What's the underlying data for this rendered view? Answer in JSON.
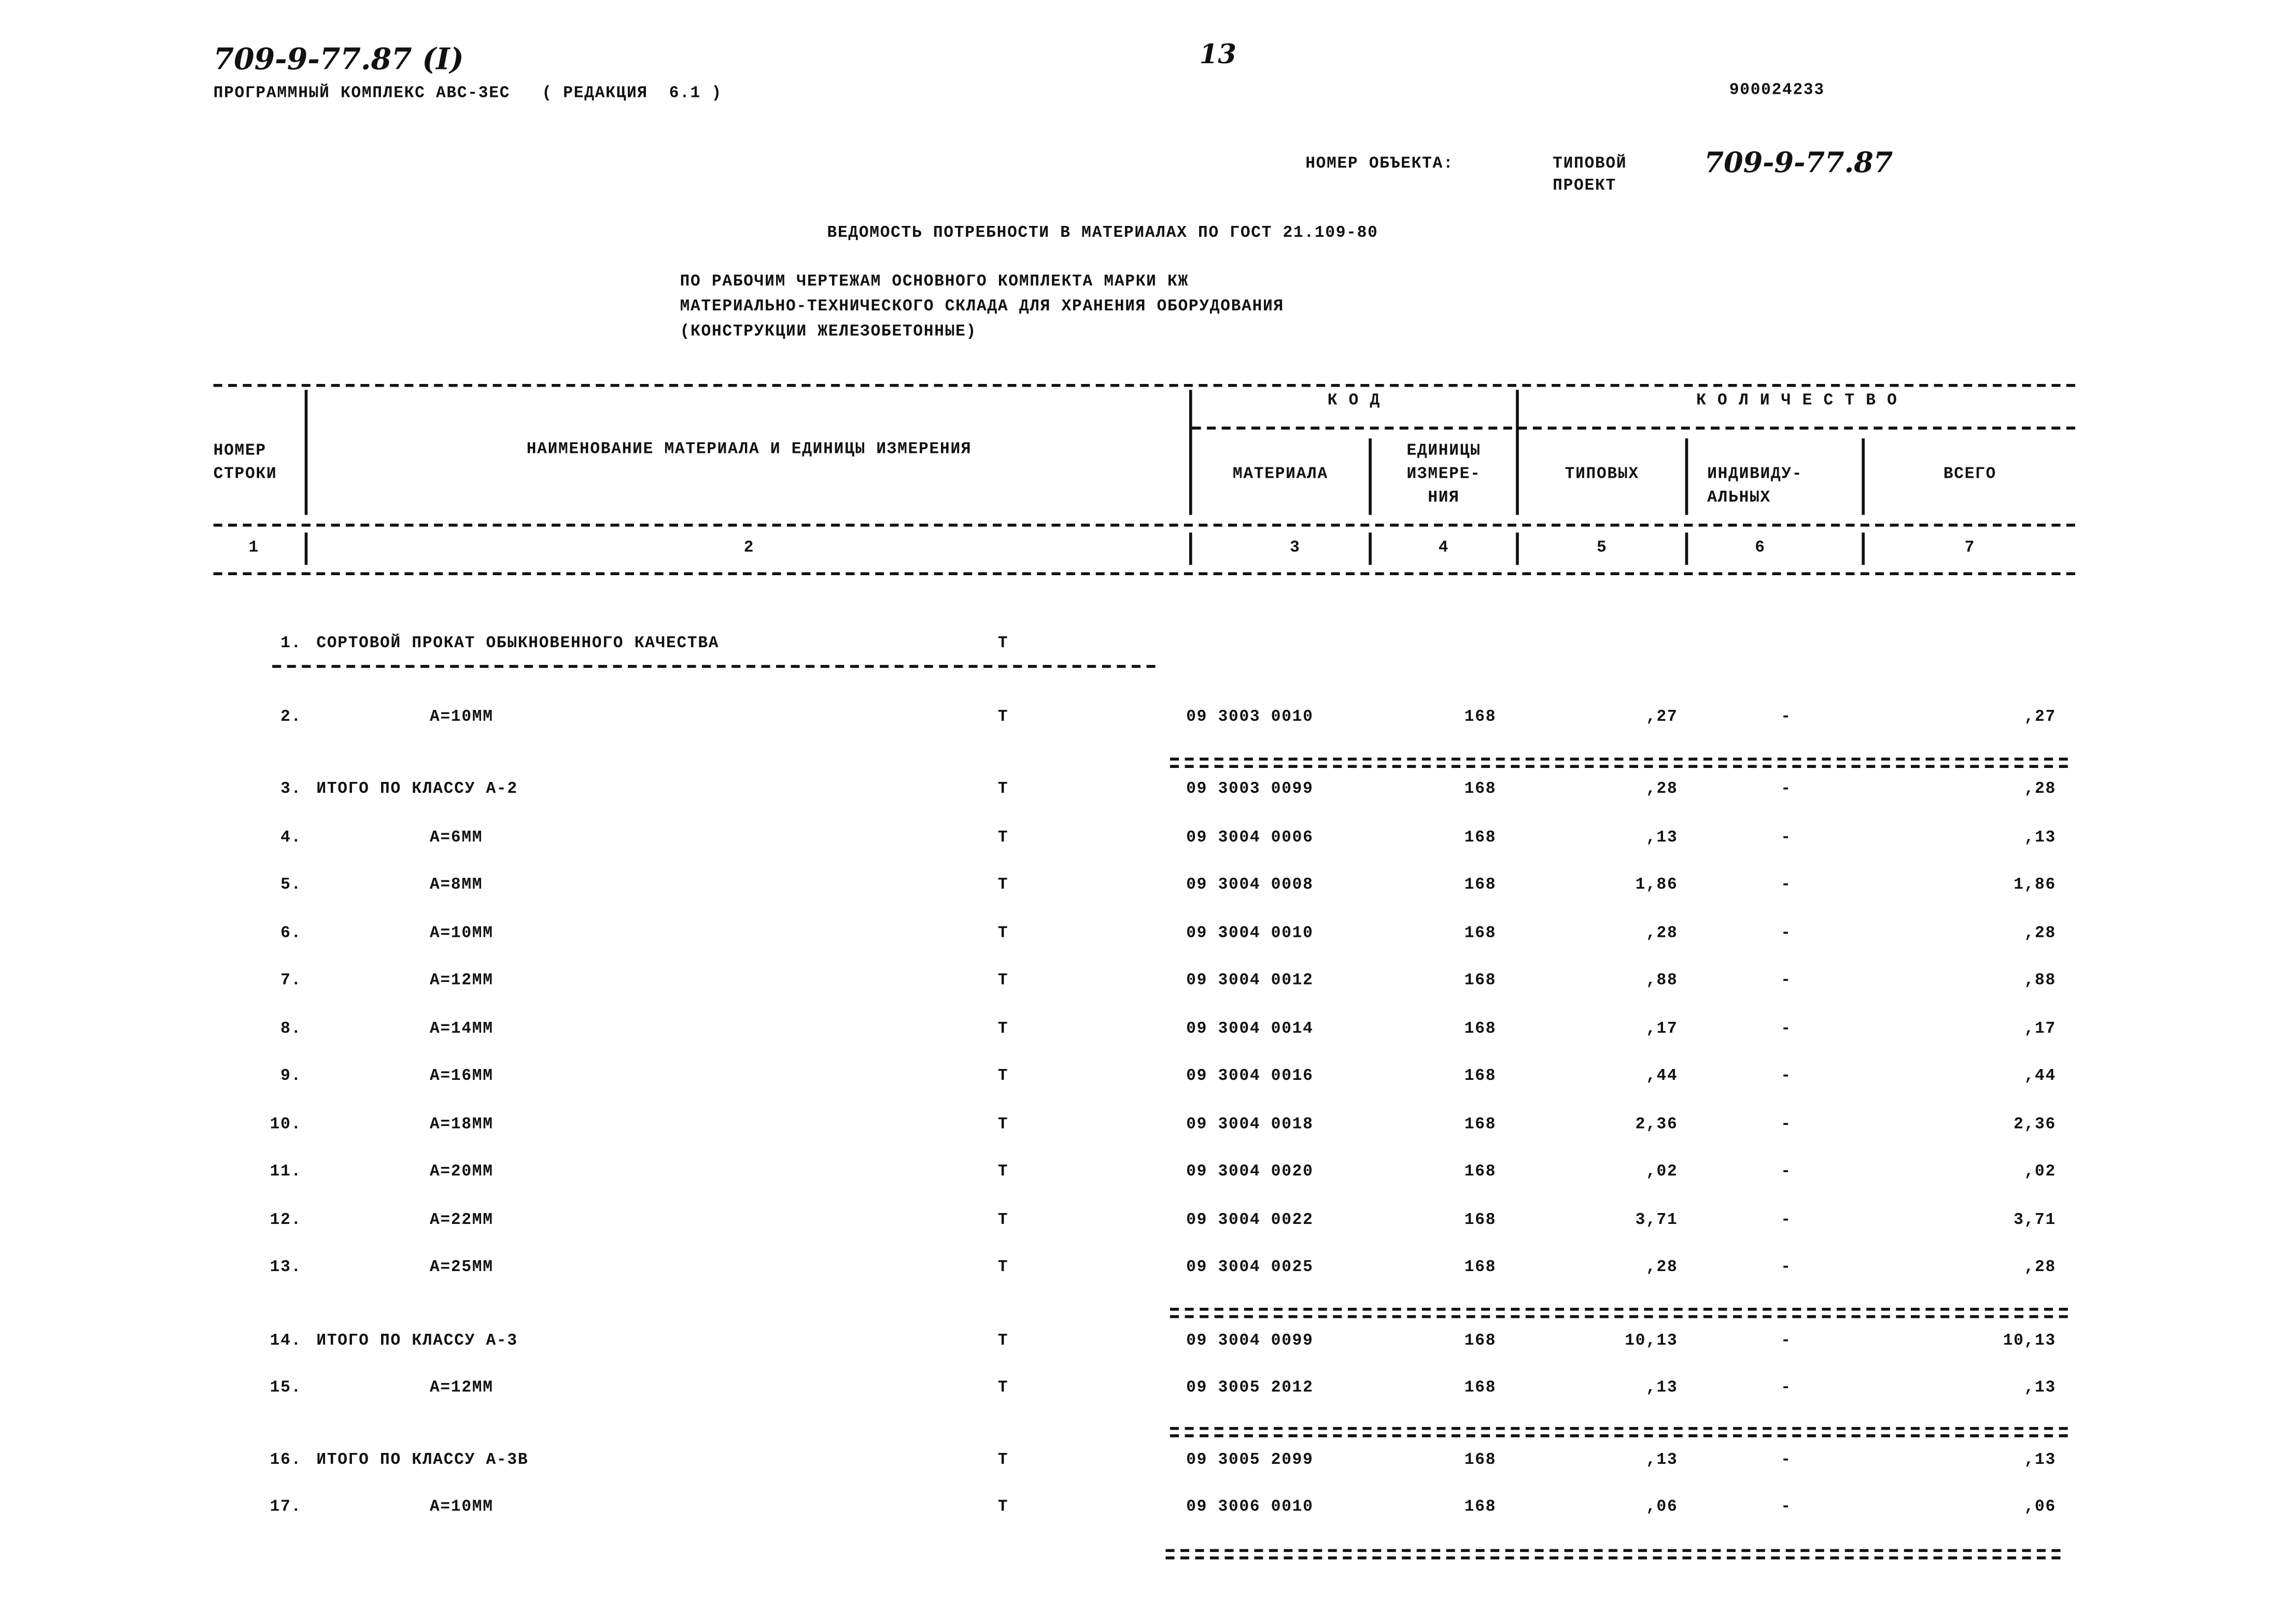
{
  "header": {
    "doc_code": "709-9-77.87 (I)",
    "page_number": "13",
    "program": "ПРОГРАММНЫЙ КОМПЛЕКС АВС-3ЕС   ( РЕДАКЦИЯ  6.1 )",
    "doc_id": "900024233",
    "object_label": "НОМЕР ОБЪЕКТА:",
    "object_type_line1": "ТИПОВОЙ",
    "object_type_line2": "ПРОЕКТ",
    "object_number": "709-9-77.87"
  },
  "title": "ВЕДОМОСТЬ ПОТРЕБНОСТИ В МАТЕРИАЛАХ ПО ГОСТ 21.109-80",
  "subtitle": [
    "ПО РАБОЧИМ ЧЕРТЕЖАМ ОСНОВНОГО КОМПЛЕКТА МАРКИ КЖ",
    "МАТЕРИАЛЬНО-ТЕХНИЧЕСКОГО СКЛАДА ДЛЯ ХРАНЕНИЯ ОБОРУДОВАНИЯ",
    "(КОНСТРУКЦИИ ЖЕЛЕЗОБЕТОННЫЕ)"
  ],
  "table": {
    "headers": {
      "row_number_1": "НОМЕР",
      "row_number_2": "СТРОКИ",
      "name": "НАИМЕНОВАНИЕ МАТЕРИАЛА И ЕДИНИЦЫ ИЗМЕРЕНИЯ",
      "code_group": "К О Д",
      "quantity_group": "К О Л И Ч Е С Т В О",
      "material": "МАТЕРИАЛА",
      "unit_1": "ЕДИНИЦЫ",
      "unit_2": "ИЗМЕРЕ-",
      "unit_3": "НИЯ",
      "typical": "ТИПОВЫХ",
      "individual_1": "ИНДИВИДУ-",
      "individual_2": "АЛЬНЫХ",
      "total": "ВСЕГО"
    },
    "column_numbers": [
      "1",
      "2",
      "3",
      "4",
      "5",
      "6",
      "7"
    ],
    "rows": [
      {
        "num": "1.",
        "name": "СОРТОВОЙ ПРОКАТ ОБЫКНОВЕННОГО КАЧЕСТВА",
        "unit": "Т",
        "code": "",
        "unit_code": "",
        "typical": "",
        "individual": "",
        "total": "",
        "kind": "section"
      },
      {
        "num": "2.",
        "name": "А=10ММ",
        "unit": "Т",
        "code": "09 3003 0010",
        "unit_code": "168",
        "typical": ",27",
        "individual": "-",
        "total": ",27",
        "kind": "item"
      },
      {
        "num": "3.",
        "name": "ИТОГО ПО КЛАССУ А-2",
        "unit": "Т",
        "code": "09 3003 0099",
        "unit_code": "168",
        "typical": ",28",
        "individual": "-",
        "total": ",28",
        "kind": "subtotal"
      },
      {
        "num": "4.",
        "name": "А=6ММ",
        "unit": "Т",
        "code": "09 3004 0006",
        "unit_code": "168",
        "typical": ",13",
        "individual": "-",
        "total": ",13",
        "kind": "item"
      },
      {
        "num": "5.",
        "name": "А=8ММ",
        "unit": "Т",
        "code": "09 3004 0008",
        "unit_code": "168",
        "typical": "1,86",
        "individual": "-",
        "total": "1,86",
        "kind": "item"
      },
      {
        "num": "6.",
        "name": "А=10ММ",
        "unit": "Т",
        "code": "09 3004 0010",
        "unit_code": "168",
        "typical": ",28",
        "individual": "-",
        "total": ",28",
        "kind": "item"
      },
      {
        "num": "7.",
        "name": "А=12ММ",
        "unit": "Т",
        "code": "09 3004 0012",
        "unit_code": "168",
        "typical": ",88",
        "individual": "-",
        "total": ",88",
        "kind": "item"
      },
      {
        "num": "8.",
        "name": "А=14ММ",
        "unit": "Т",
        "code": "09 3004 0014",
        "unit_code": "168",
        "typical": ",17",
        "individual": "-",
        "total": ",17",
        "kind": "item"
      },
      {
        "num": "9.",
        "name": "А=16ММ",
        "unit": "Т",
        "code": "09 3004 0016",
        "unit_code": "168",
        "typical": ",44",
        "individual": "-",
        "total": ",44",
        "kind": "item"
      },
      {
        "num": "10.",
        "name": "А=18ММ",
        "unit": "Т",
        "code": "09 3004 0018",
        "unit_code": "168",
        "typical": "2,36",
        "individual": "-",
        "total": "2,36",
        "kind": "item"
      },
      {
        "num": "11.",
        "name": "А=20ММ",
        "unit": "Т",
        "code": "09 3004 0020",
        "unit_code": "168",
        "typical": ",02",
        "individual": "-",
        "total": ",02",
        "kind": "item"
      },
      {
        "num": "12.",
        "name": "А=22ММ",
        "unit": "Т",
        "code": "09 3004 0022",
        "unit_code": "168",
        "typical": "3,71",
        "individual": "-",
        "total": "3,71",
        "kind": "item"
      },
      {
        "num": "13.",
        "name": "А=25ММ",
        "unit": "Т",
        "code": "09 3004 0025",
        "unit_code": "168",
        "typical": ",28",
        "individual": "-",
        "total": ",28",
        "kind": "item"
      },
      {
        "num": "14.",
        "name": "ИТОГО ПО КЛАССУ А-3",
        "unit": "Т",
        "code": "09 3004 0099",
        "unit_code": "168",
        "typical": "10,13",
        "individual": "-",
        "total": "10,13",
        "kind": "subtotal"
      },
      {
        "num": "15.",
        "name": "А=12ММ",
        "unit": "Т",
        "code": "09 3005 2012",
        "unit_code": "168",
        "typical": ",13",
        "individual": "-",
        "total": ",13",
        "kind": "item"
      },
      {
        "num": "16.",
        "name": "ИТОГО ПО КЛАССУ А-3В",
        "unit": "Т",
        "code": "09 3005 2099",
        "unit_code": "168",
        "typical": ",13",
        "individual": "-",
        "total": ",13",
        "kind": "subtotal"
      },
      {
        "num": "17.",
        "name": "А=10ММ",
        "unit": "Т",
        "code": "09 3006 0010",
        "unit_code": "168",
        "typical": ",06",
        "individual": "-",
        "total": ",06",
        "kind": "item"
      }
    ]
  }
}
